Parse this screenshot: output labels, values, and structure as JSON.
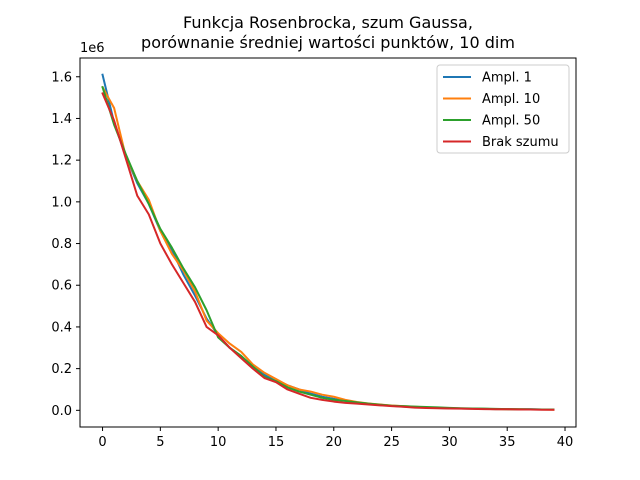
{
  "chart_data": {
    "type": "line",
    "title_lines": [
      "Funkcja Rosenbrocka, szum Gaussa,",
      "porównanie średniej wartości punktów, 10 dim"
    ],
    "xlabel": "",
    "ylabel": "",
    "y_offset_label": "1e6",
    "xlim": [
      -1.95,
      40.95
    ],
    "ylim": [
      -0.08,
      1.69
    ],
    "xticks": [
      0,
      5,
      10,
      15,
      20,
      25,
      30,
      35,
      40
    ],
    "yticks": [
      0.0,
      0.2,
      0.4,
      0.6,
      0.8,
      1.0,
      1.2,
      1.4,
      1.6
    ],
    "ytick_labels": [
      "0.0",
      "0.2",
      "0.4",
      "0.6",
      "0.8",
      "1.0",
      "1.2",
      "1.4",
      "1.6"
    ],
    "grid": false,
    "legend_position": "top-right",
    "x": [
      0,
      1,
      2,
      3,
      4,
      5,
      6,
      7,
      8,
      9,
      10,
      11,
      12,
      13,
      14,
      15,
      16,
      17,
      18,
      19,
      20,
      21,
      22,
      23,
      24,
      25,
      26,
      27,
      28,
      29,
      30,
      31,
      32,
      33,
      34,
      35,
      36,
      37,
      38,
      39
    ],
    "series": [
      {
        "name": "Ampl. 1",
        "color": "#1f77b4",
        "values": [
          1.61,
          1.38,
          1.22,
          1.09,
          0.99,
          0.86,
          0.77,
          0.65,
          0.55,
          0.44,
          0.36,
          0.3,
          0.26,
          0.21,
          0.17,
          0.14,
          0.12,
          0.1,
          0.08,
          0.065,
          0.055,
          0.045,
          0.037,
          0.031,
          0.026,
          0.022,
          0.018,
          0.015,
          0.013,
          0.011,
          0.01,
          0.009,
          0.008,
          0.007,
          0.006,
          0.006,
          0.005,
          0.005,
          0.004,
          0.004
        ]
      },
      {
        "name": "Ampl. 10",
        "color": "#ff7f0e",
        "values": [
          1.55,
          1.45,
          1.22,
          1.1,
          1.01,
          0.86,
          0.75,
          0.67,
          0.57,
          0.43,
          0.37,
          0.32,
          0.28,
          0.22,
          0.18,
          0.15,
          0.12,
          0.1,
          0.09,
          0.075,
          0.065,
          0.05,
          0.04,
          0.033,
          0.028,
          0.023,
          0.02,
          0.017,
          0.014,
          0.012,
          0.01,
          0.009,
          0.008,
          0.007,
          0.006,
          0.005,
          0.005,
          0.004,
          0.004,
          0.003
        ]
      },
      {
        "name": "Ampl. 50",
        "color": "#2ca02c",
        "values": [
          1.55,
          1.37,
          1.23,
          1.1,
          0.99,
          0.87,
          0.78,
          0.68,
          0.59,
          0.48,
          0.35,
          0.3,
          0.26,
          0.21,
          0.16,
          0.14,
          0.11,
          0.09,
          0.075,
          0.06,
          0.05,
          0.045,
          0.038,
          0.032,
          0.027,
          0.022,
          0.02,
          0.018,
          0.016,
          0.014,
          0.012,
          0.01,
          0.009,
          0.008,
          0.007,
          0.006,
          0.005,
          0.005,
          0.004,
          0.004
        ]
      },
      {
        "name": "Brak szumu",
        "color": "#d62728",
        "values": [
          1.52,
          1.39,
          1.21,
          1.03,
          0.94,
          0.8,
          0.7,
          0.61,
          0.52,
          0.4,
          0.36,
          0.3,
          0.25,
          0.2,
          0.155,
          0.135,
          0.1,
          0.08,
          0.06,
          0.05,
          0.042,
          0.036,
          0.032,
          0.028,
          0.024,
          0.02,
          0.017,
          0.013,
          0.011,
          0.01,
          0.009,
          0.008,
          0.007,
          0.006,
          0.005,
          0.005,
          0.004,
          0.004,
          0.003,
          0.003
        ]
      }
    ]
  }
}
